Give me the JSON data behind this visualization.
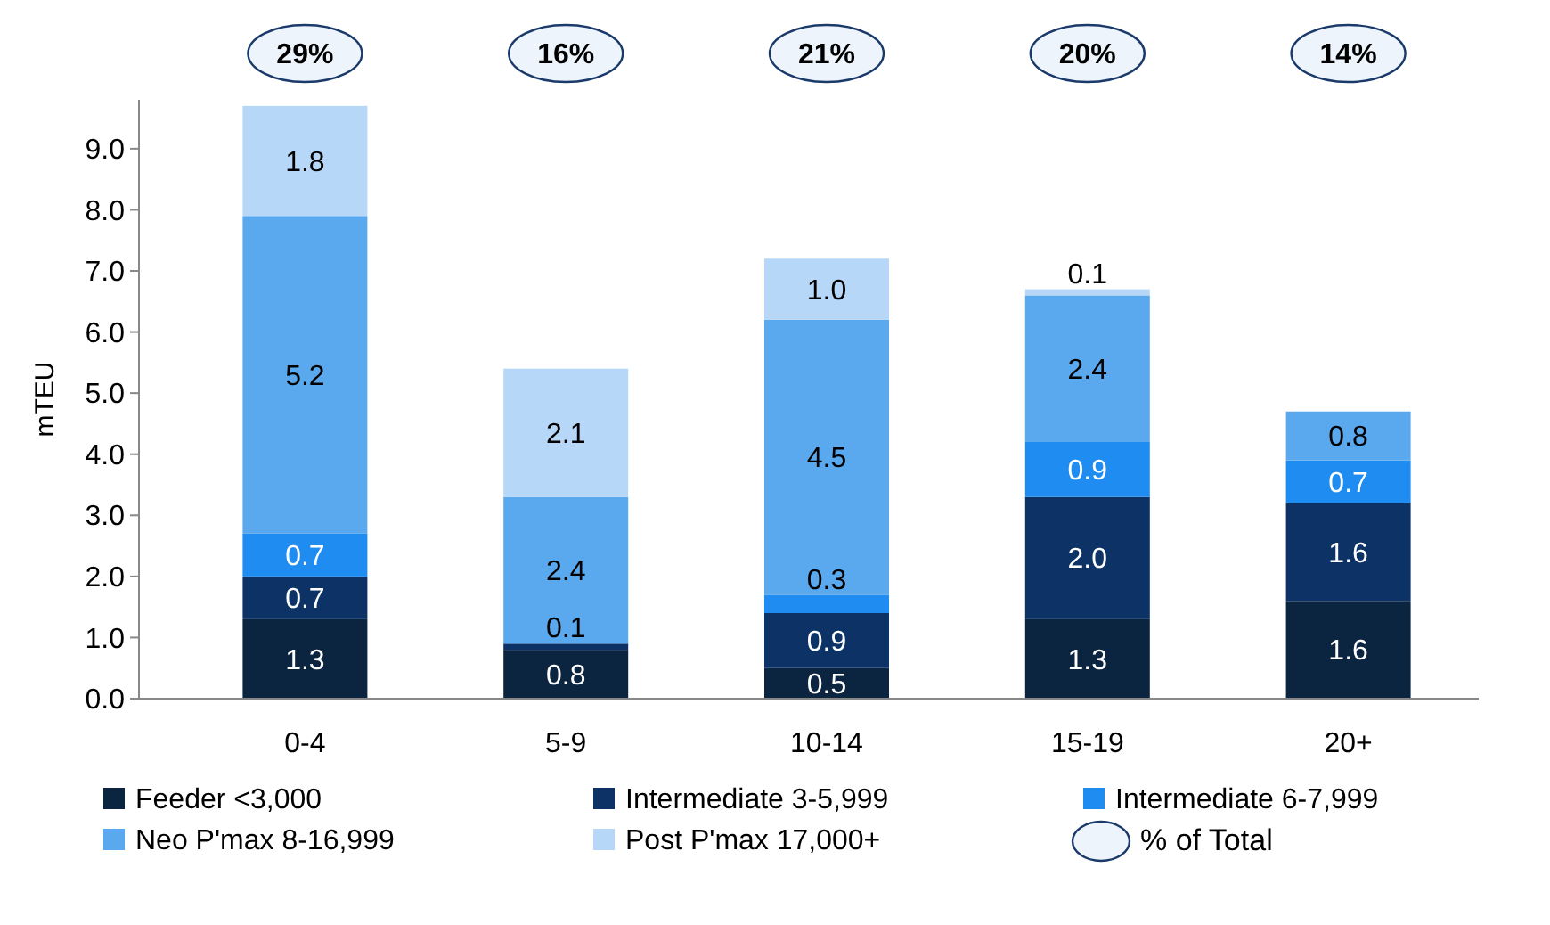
{
  "chart_data": {
    "type": "bar",
    "stacked": true,
    "ylabel": "mTEU",
    "categories": [
      "0-4",
      "5-9",
      "10-14",
      "15-19",
      "20+"
    ],
    "series": [
      {
        "name": "Feeder <3,000",
        "color": "#0b2440",
        "values": [
          1.3,
          0.8,
          0.5,
          1.3,
          1.6
        ],
        "value_labels": [
          "1.3",
          "0.8",
          "0.5",
          "1.3",
          "1.6"
        ]
      },
      {
        "name": "Intermediate 3-5,999",
        "color": "#0d3366",
        "values": [
          0.7,
          0.1,
          0.9,
          2.0,
          1.6
        ],
        "value_labels": [
          "0.7",
          "0.1",
          "0.9",
          "2.0",
          "1.6"
        ]
      },
      {
        "name": "Intermediate 6-7,999",
        "color": "#1e8cf0",
        "values": [
          0.7,
          0,
          0.3,
          0.9,
          0.7
        ],
        "value_labels": [
          "0.7",
          null,
          "0.3",
          "0.9",
          "0.7"
        ]
      },
      {
        "name": "Neo P'max 8-16,999",
        "color": "#5aa8ee",
        "values": [
          5.2,
          2.4,
          4.5,
          2.4,
          0.8
        ],
        "value_labels": [
          "5.2",
          "2.4",
          "4.5",
          "2.4",
          "0.8"
        ]
      },
      {
        "name": "Post P'max 17,000+",
        "color": "#b6d7f8",
        "values": [
          1.8,
          2.1,
          1.0,
          0.1,
          0
        ],
        "value_labels": [
          "1.8",
          "2.1",
          "1.0",
          "0.1",
          null
        ]
      }
    ],
    "ylim": [
      0,
      9.8
    ],
    "yticks": [
      {
        "value": 0,
        "label": "0.0"
      },
      {
        "value": 1,
        "label": "1.0"
      },
      {
        "value": 2,
        "label": "2.0"
      },
      {
        "value": 3,
        "label": "3.0"
      },
      {
        "value": 4,
        "label": "4.0"
      },
      {
        "value": 5,
        "label": "5.0"
      },
      {
        "value": 6,
        "label": "6.0"
      },
      {
        "value": 7,
        "label": "7.0"
      },
      {
        "value": 8,
        "label": "8.0"
      },
      {
        "value": 9,
        "label": "9.0"
      }
    ],
    "annotations": [
      "29%",
      "16%",
      "21%",
      "20%",
      "14%",
      "% of Total"
    ],
    "legend": "bottom",
    "grid": false
  }
}
